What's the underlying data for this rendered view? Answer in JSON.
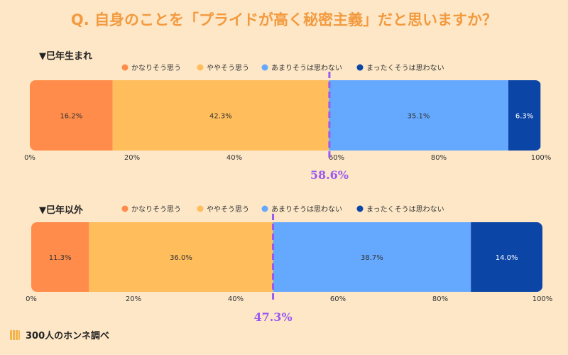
{
  "title": "Q. 自身のことを「プライドが高く秘密主義」だと思いますか？",
  "footer": "300人のホンネ調べ",
  "colors": {
    "title": "#f39a3e",
    "marker": "#9b59f2",
    "series": [
      "#ff8c4a",
      "#ffbd5c",
      "#65a9ff",
      "#0b45a6"
    ]
  },
  "chart_data": [
    {
      "type": "bar",
      "title": "▼巳年生まれ",
      "orientation": "horizontal-stacked",
      "series": [
        {
          "name": "かなりそう思う",
          "value": 16.2,
          "label": "16.2%"
        },
        {
          "name": "ややそう思う",
          "value": 42.3,
          "label": "42.3%"
        },
        {
          "name": "あまりそうは思わない",
          "value": 35.1,
          "label": "35.1%"
        },
        {
          "name": "まったくそうは思わない",
          "value": 6.3,
          "label": "6.3%"
        }
      ],
      "ticks": [
        "0%",
        "20%",
        "40%",
        "60%",
        "80%",
        "100%"
      ],
      "xlim": [
        0,
        100
      ],
      "marker": {
        "value": 58.6,
        "label": "58.6%"
      },
      "legend": "top"
    },
    {
      "type": "bar",
      "title": "▼巳年以外",
      "orientation": "horizontal-stacked",
      "series": [
        {
          "name": "かなりそう思う",
          "value": 11.3,
          "label": "11.3%"
        },
        {
          "name": "ややそう思う",
          "value": 36.0,
          "label": "36.0%"
        },
        {
          "name": "あまりそうは思わない",
          "value": 38.7,
          "label": "38.7%"
        },
        {
          "name": "まったくそうは思わない",
          "value": 14.0,
          "label": "14.0%"
        }
      ],
      "ticks": [
        "0%",
        "20%",
        "40%",
        "60%",
        "80%",
        "100%"
      ],
      "xlim": [
        0,
        100
      ],
      "marker": {
        "value": 47.3,
        "label": "47.3%"
      },
      "legend": "top"
    }
  ]
}
